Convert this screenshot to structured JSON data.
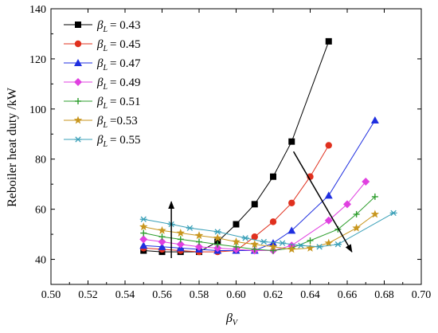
{
  "chart_data": {
    "type": "line",
    "xlabel": "β",
    "xlabel_sub": "V",
    "ylabel": "Reboiler heat duty /kW",
    "xlim": [
      0.5,
      0.7
    ],
    "ylim": [
      30,
      140
    ],
    "xticks": [
      "0.50",
      "0.52",
      "0.54",
      "0.56",
      "0.58",
      "0.60",
      "0.62",
      "0.64",
      "0.66",
      "0.68",
      "0.70"
    ],
    "yticks": [
      "40",
      "60",
      "80",
      "100",
      "120",
      "140"
    ],
    "grid": false,
    "legend_position": "top-left",
    "series": [
      {
        "name": "β",
        "name_sub": "L",
        "name_value": "= 0.43",
        "marker": "square",
        "color": "#000000",
        "x": [
          0.55,
          0.56,
          0.57,
          0.58,
          0.59,
          0.6,
          0.61,
          0.62,
          0.63,
          0.65
        ],
        "y": [
          43.5,
          43,
          43,
          43,
          47,
          54,
          62,
          73,
          87,
          127
        ]
      },
      {
        "name": "β",
        "name_sub": "L",
        "name_value": "= 0.45",
        "marker": "circle",
        "color": "#e0301e",
        "x": [
          0.55,
          0.56,
          0.57,
          0.58,
          0.59,
          0.6,
          0.61,
          0.62,
          0.63,
          0.64,
          0.65
        ],
        "y": [
          44.5,
          44,
          43.5,
          43,
          43,
          43.5,
          49,
          55,
          62.5,
          73,
          85.5
        ]
      },
      {
        "name": "β",
        "name_sub": "L",
        "name_value": "= 0.47",
        "marker": "triangle",
        "color": "#1f2fe0",
        "x": [
          0.55,
          0.56,
          0.57,
          0.58,
          0.59,
          0.6,
          0.61,
          0.62,
          0.63,
          0.65,
          0.675
        ],
        "y": [
          45.5,
          45,
          44.5,
          44,
          43.5,
          43.5,
          43.5,
          46.5,
          51.5,
          65.5,
          95.5
        ]
      },
      {
        "name": "β",
        "name_sub": "L",
        "name_value": "= 0.49",
        "marker": "diamond",
        "color": "#e040e0",
        "x": [
          0.55,
          0.56,
          0.57,
          0.58,
          0.59,
          0.6,
          0.61,
          0.62,
          0.63,
          0.65,
          0.66,
          0.67
        ],
        "y": [
          48,
          47,
          46,
          45,
          44.5,
          44,
          43.5,
          43.5,
          45.5,
          55.5,
          62,
          71
        ]
      },
      {
        "name": "β",
        "name_sub": "L",
        "name_value": "= 0.51",
        "marker": "plus",
        "color": "#2e9e2e",
        "x": [
          0.55,
          0.56,
          0.57,
          0.58,
          0.59,
          0.6,
          0.61,
          0.62,
          0.63,
          0.64,
          0.655,
          0.665,
          0.675
        ],
        "y": [
          50.5,
          49,
          48,
          47,
          46,
          45,
          44,
          43.5,
          44.5,
          47.5,
          52,
          58,
          65
        ]
      },
      {
        "name": "β",
        "name_sub": "L",
        "name_value": "=0.53",
        "marker": "star",
        "color": "#c8961e",
        "x": [
          0.55,
          0.56,
          0.57,
          0.58,
          0.59,
          0.6,
          0.61,
          0.62,
          0.63,
          0.64,
          0.65,
          0.665,
          0.675
        ],
        "y": [
          53,
          51.5,
          50.5,
          49.5,
          48.5,
          47,
          46,
          45,
          44,
          44.5,
          46.5,
          52.5,
          58
        ]
      },
      {
        "name": "β",
        "name_sub": "L",
        "name_value": "= 0.55",
        "marker": "asterisk",
        "color": "#3aa0b8",
        "x": [
          0.55,
          0.565,
          0.575,
          0.59,
          0.605,
          0.615,
          0.625,
          0.635,
          0.645,
          0.655,
          0.685
        ],
        "y": [
          56,
          54,
          52.5,
          51,
          48.5,
          47,
          46.5,
          45.5,
          45,
          46,
          58.5
        ]
      }
    ],
    "annotations": [
      {
        "type": "arrow",
        "from": [
          0.565,
          40.5
        ],
        "to": [
          0.565,
          63
        ]
      },
      {
        "type": "arrow",
        "from": [
          0.631,
          83
        ],
        "to": [
          0.6625,
          43
        ]
      }
    ]
  }
}
